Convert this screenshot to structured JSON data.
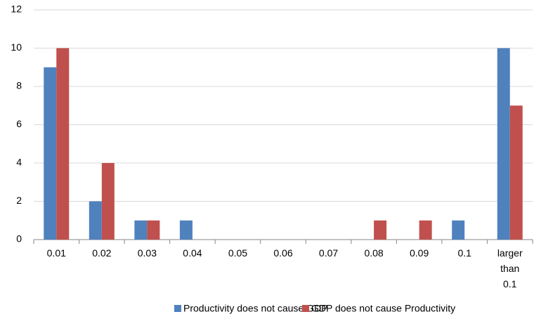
{
  "chart_data": {
    "type": "bar",
    "categories": [
      "0.01",
      "0.02",
      "0.03",
      "0.04",
      "0.05",
      "0.06",
      "0.07",
      "0.08",
      "0.09",
      "0.1",
      "larger than 0.1"
    ],
    "series": [
      {
        "name": "Productivity does not cause GDP",
        "color": "#4f81bd",
        "values": [
          9,
          2,
          1,
          1,
          0,
          0,
          0,
          0,
          0,
          1,
          10
        ]
      },
      {
        "name": "GDP does not cause Productivity",
        "color": "#c0504d",
        "values": [
          10,
          4,
          1,
          0,
          0,
          0,
          0,
          1,
          1,
          0,
          7
        ]
      }
    ],
    "ylim": [
      0,
      12
    ],
    "yticks": [
      0,
      2,
      4,
      6,
      8,
      10,
      12
    ],
    "grid": true,
    "legend": "bottom"
  }
}
